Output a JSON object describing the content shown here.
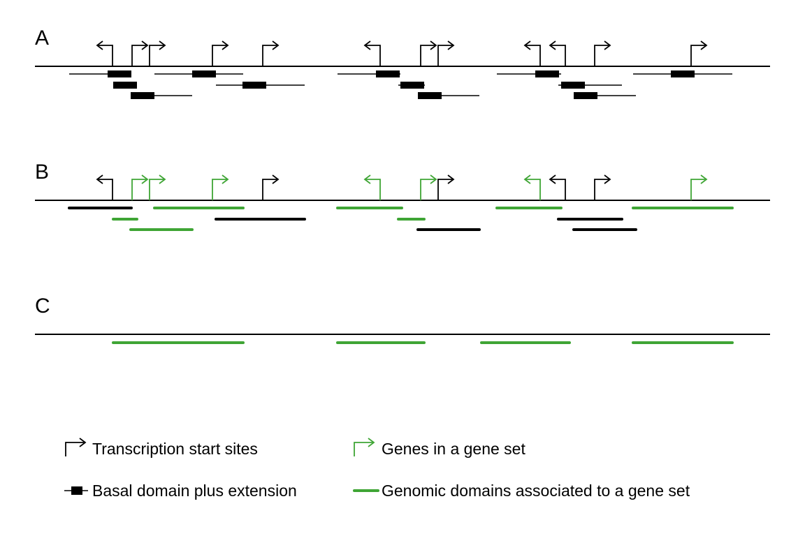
{
  "colors": {
    "black": "#000000",
    "green": "#3fa535"
  },
  "panels": {
    "a": {
      "label": "A"
    },
    "b": {
      "label": "B"
    },
    "c": {
      "label": "C"
    }
  },
  "legend": {
    "tss": "Transcription start sites",
    "gene_set": "Genes in a gene set",
    "basal_domain": "Basal domain plus extension",
    "genomic_domains": "Genomic domains associated to a gene set"
  }
}
